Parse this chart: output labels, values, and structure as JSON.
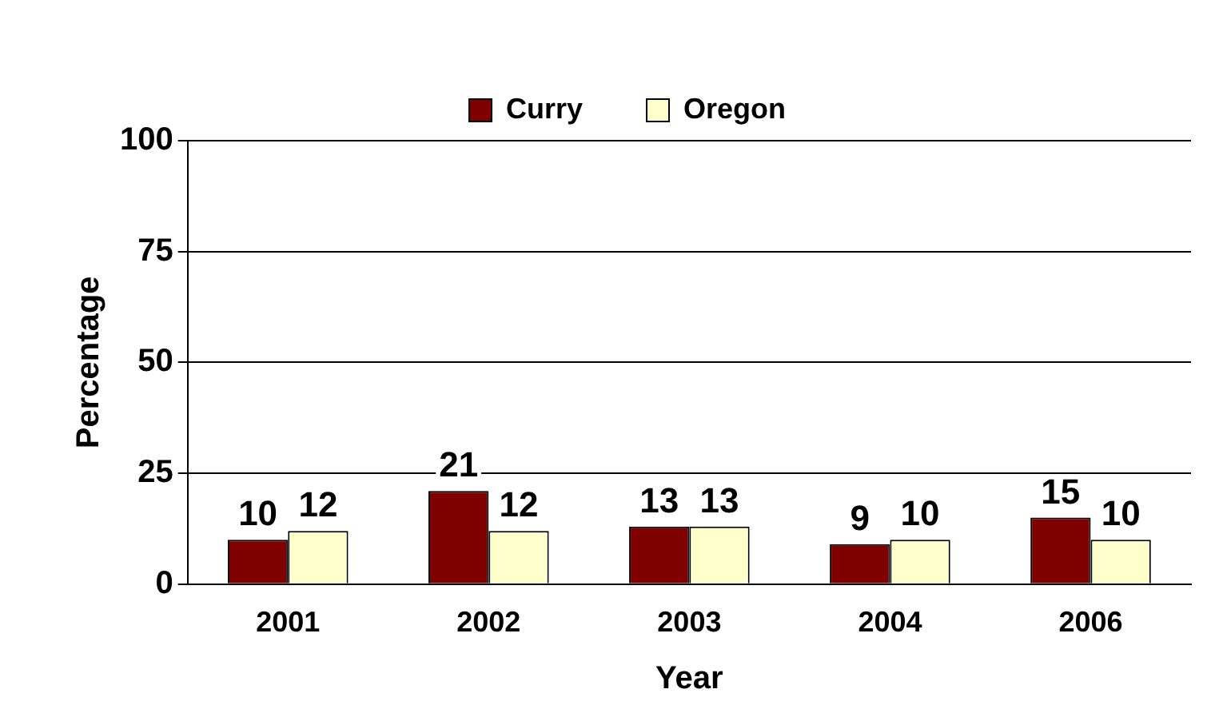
{
  "chart_data": {
    "type": "bar",
    "xlabel": "Year",
    "ylabel": "Percentage",
    "categories": [
      "2001",
      "2002",
      "2003",
      "2004",
      "2006"
    ],
    "series": [
      {
        "name": "Curry",
        "color": "#800000",
        "values": [
          10,
          21,
          13,
          9,
          15
        ]
      },
      {
        "name": "Oregon",
        "color": "#ffffcc",
        "values": [
          12,
          12,
          13,
          10,
          10
        ]
      }
    ],
    "ylim": [
      0,
      100
    ],
    "yticks": [
      0,
      25,
      50,
      75,
      100
    ],
    "grid": "y",
    "legend": "top",
    "data_labels": true
  }
}
